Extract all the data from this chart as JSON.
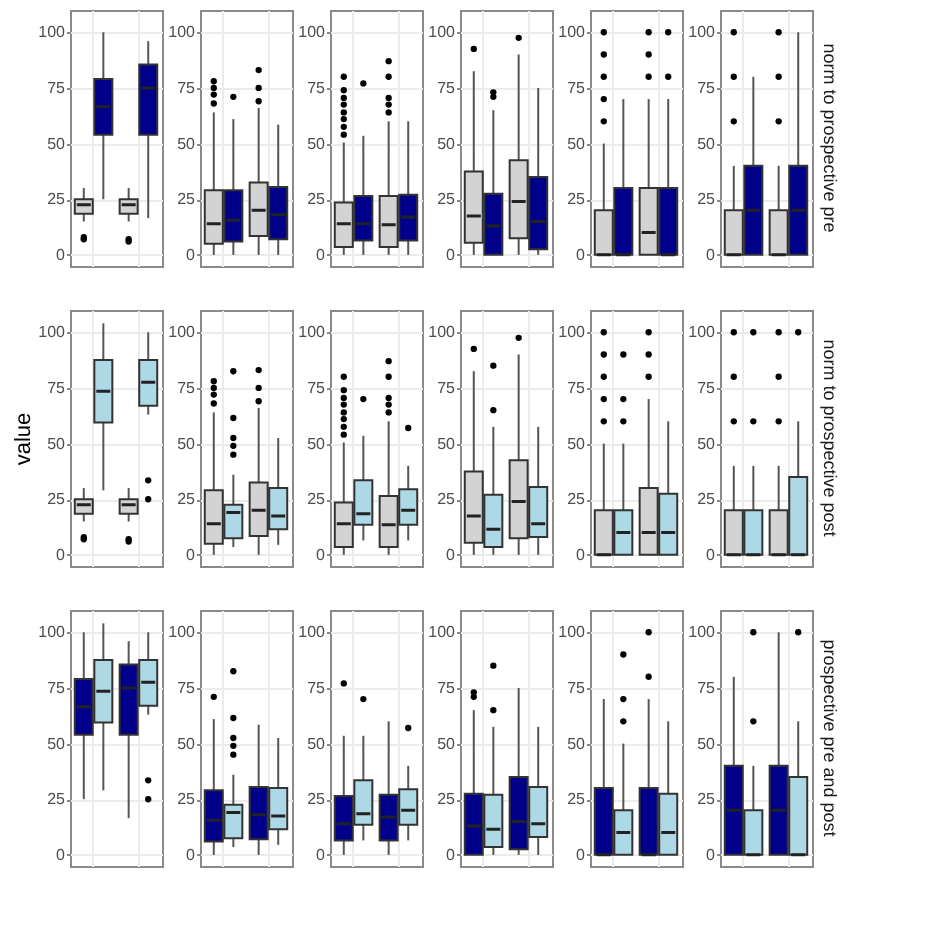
{
  "chart_data": [
    {
      "type": "box",
      "categories": [
        null,
        null
      ],
      "ylim": [
        -5,
        110
      ],
      "yticks": [
        0,
        25,
        50,
        75,
        100
      ],
      "grid": true,
      "series": [
        {
          "color": "#d3d3d3",
          "boxes": [
            {
              "low": 15,
              "q1": 18.5,
              "median": 22.5,
              "q3": 25,
              "high": 30,
              "outliers": [
                8,
                7
              ]
            },
            {
              "low": 15,
              "q1": 18.5,
              "median": 22.5,
              "q3": 25,
              "high": 30,
              "outliers": [
                7,
                6
              ]
            }
          ]
        },
        {
          "color": "#00008b",
          "boxes": [
            {
              "low": 25,
              "q1": 54,
              "median": 66.5,
              "q3": 79,
              "high": 100
            },
            {
              "low": 16.5,
              "q1": 54,
              "median": 75,
              "q3": 85.5,
              "high": 96
            }
          ]
        }
      ]
    },
    {
      "type": "box",
      "categories": [
        null,
        null
      ],
      "ylim": [
        -5,
        110
      ],
      "yticks": [
        0,
        25,
        50,
        75,
        100
      ],
      "grid": true,
      "series": [
        {
          "color": "#d3d3d3",
          "boxes": [
            {
              "low": 0,
              "q1": 5,
              "median": 14,
              "q3": 29,
              "high": 64,
              "outliers": [
                68,
                72,
                75,
                78
              ]
            },
            {
              "low": 0,
              "q1": 8.5,
              "median": 20,
              "q3": 32.5,
              "high": 66,
              "outliers": [
                69,
                75,
                83
              ]
            }
          ]
        },
        {
          "color": "#00008b",
          "boxes": [
            {
              "low": 0,
              "q1": 6,
              "median": 15.5,
              "q3": 29,
              "high": 61,
              "outliers": [
                71
              ]
            },
            {
              "low": 0,
              "q1": 7,
              "median": 18,
              "q3": 30.5,
              "high": 58.5
            }
          ]
        }
      ]
    },
    {
      "type": "box",
      "categories": [
        null,
        null
      ],
      "ylim": [
        -5,
        110
      ],
      "yticks": [
        0,
        25,
        50,
        75,
        100
      ],
      "grid": true,
      "series": [
        {
          "color": "#d3d3d3",
          "boxes": [
            {
              "low": 0,
              "q1": 3.5,
              "median": 14,
              "q3": 23.5,
              "high": 50.5,
              "outliers": [
                54,
                57.5,
                61,
                64,
                67.5,
                70.5,
                74,
                80
              ]
            },
            {
              "low": 0,
              "q1": 3.5,
              "median": 13.5,
              "q3": 26.5,
              "high": 60,
              "outliers": [
                64,
                67.5,
                70.5,
                80,
                87
              ]
            }
          ]
        },
        {
          "color": "#00008b",
          "boxes": [
            {
              "low": 0,
              "q1": 6.5,
              "median": 14,
              "q3": 26.5,
              "high": 53.5,
              "outliers": [
                77
              ]
            },
            {
              "low": 0,
              "q1": 6.5,
              "median": 17,
              "q3": 27,
              "high": 60
            }
          ]
        }
      ]
    },
    {
      "type": "box",
      "categories": [
        null,
        null
      ],
      "ylim": [
        -5,
        110
      ],
      "yticks": [
        0,
        25,
        50,
        75,
        100
      ],
      "grid": true,
      "series": [
        {
          "color": "#d3d3d3",
          "boxes": [
            {
              "low": 0,
              "q1": 5.5,
              "median": 17.5,
              "q3": 37.5,
              "high": 82.5,
              "outliers": [
                92.5
              ]
            },
            {
              "low": 0,
              "q1": 7.5,
              "median": 24,
              "q3": 42.5,
              "high": 90,
              "outliers": [
                97.5
              ]
            }
          ]
        },
        {
          "color": "#00008b",
          "boxes": [
            {
              "low": 0,
              "q1": 0,
              "median": 13,
              "q3": 27.5,
              "high": 65,
              "outliers": [
                71,
                73
              ]
            },
            {
              "low": 0,
              "q1": 2.5,
              "median": 15,
              "q3": 35,
              "high": 75
            }
          ]
        }
      ]
    },
    {
      "type": "box",
      "categories": [
        null,
        null
      ],
      "ylim": [
        -5,
        110
      ],
      "yticks": [
        0,
        25,
        50,
        75,
        100
      ],
      "grid": true,
      "series": [
        {
          "color": "#d3d3d3",
          "boxes": [
            {
              "low": 0,
              "q1": 0,
              "median": 0,
              "q3": 20,
              "high": 50,
              "outliers": [
                60,
                70,
                80,
                90,
                100
              ]
            },
            {
              "low": 0,
              "q1": 0,
              "median": 10,
              "q3": 30,
              "high": 70,
              "outliers": [
                80,
                90,
                100
              ]
            }
          ]
        },
        {
          "color": "#00008b",
          "boxes": [
            {
              "low": 0,
              "q1": 0,
              "median": 0,
              "q3": 30,
              "high": 70
            },
            {
              "low": 0,
              "q1": 0,
              "median": 0,
              "q3": 30,
              "high": 70,
              "outliers": [
                80,
                100
              ]
            }
          ]
        }
      ]
    },
    {
      "type": "box",
      "categories": [
        null,
        null
      ],
      "ylim": [
        -5,
        110
      ],
      "yticks": [
        0,
        25,
        50,
        75,
        100
      ],
      "grid": true,
      "y2label": "norm to prospective pre",
      "series": [
        {
          "color": "#d3d3d3",
          "boxes": [
            {
              "low": 0,
              "q1": 0,
              "median": 0,
              "q3": 20,
              "high": 40,
              "outliers": [
                60,
                80,
                100
              ]
            },
            {
              "low": 0,
              "q1": 0,
              "median": 0,
              "q3": 20,
              "high": 40,
              "outliers": [
                60,
                80,
                100
              ]
            }
          ]
        },
        {
          "color": "#00008b",
          "boxes": [
            {
              "low": 0,
              "q1": 0,
              "median": 20,
              "q3": 40,
              "high": 80
            },
            {
              "low": 0,
              "q1": 0,
              "median": 20,
              "q3": 40,
              "high": 100
            }
          ]
        }
      ]
    },
    {
      "type": "box",
      "categories": [
        null,
        null
      ],
      "ylim": [
        -5,
        110
      ],
      "yticks": [
        0,
        25,
        50,
        75,
        100
      ],
      "grid": true,
      "ylabel": "value",
      "series": [
        {
          "color": "#d3d3d3",
          "boxes": [
            {
              "low": 15,
              "q1": 18.5,
              "median": 22.5,
              "q3": 25,
              "high": 30,
              "outliers": [
                8,
                7
              ]
            },
            {
              "low": 15,
              "q1": 18.5,
              "median": 22.5,
              "q3": 25,
              "high": 30,
              "outliers": [
                7,
                6
              ]
            }
          ]
        },
        {
          "color": "#add8e6",
          "boxes": [
            {
              "low": 29,
              "q1": 59.5,
              "median": 73.5,
              "q3": 87.5,
              "high": 104
            },
            {
              "low": 63,
              "q1": 67,
              "median": 77.5,
              "q3": 87.5,
              "high": 100,
              "outliers": [
                33.5,
                25
              ]
            }
          ]
        }
      ]
    },
    {
      "type": "box",
      "categories": [
        null,
        null
      ],
      "ylim": [
        -5,
        110
      ],
      "yticks": [
        0,
        25,
        50,
        75,
        100
      ],
      "grid": true,
      "series": [
        {
          "color": "#d3d3d3",
          "boxes": [
            {
              "low": 0,
              "q1": 5,
              "median": 14,
              "q3": 29,
              "high": 64,
              "outliers": [
                68,
                72,
                75,
                78
              ]
            },
            {
              "low": 0,
              "q1": 8.5,
              "median": 20,
              "q3": 32.5,
              "high": 66,
              "outliers": [
                69,
                75,
                83
              ]
            }
          ]
        },
        {
          "color": "#add8e6",
          "boxes": [
            {
              "low": 3.5,
              "q1": 7.5,
              "median": 19,
              "q3": 22.5,
              "high": 36,
              "outliers": [
                45,
                49,
                52.5,
                61.5,
                82.5
              ]
            },
            {
              "low": 4.5,
              "q1": 11.5,
              "median": 17.5,
              "q3": 30,
              "high": 52.5
            }
          ]
        }
      ]
    },
    {
      "type": "box",
      "categories": [
        null,
        null
      ],
      "ylim": [
        -5,
        110
      ],
      "yticks": [
        0,
        25,
        50,
        75,
        100
      ],
      "grid": true,
      "series": [
        {
          "color": "#d3d3d3",
          "boxes": [
            {
              "low": 0,
              "q1": 3.5,
              "median": 14,
              "q3": 23.5,
              "high": 50.5,
              "outliers": [
                54,
                57.5,
                61,
                64,
                67.5,
                70.5,
                74,
                80
              ]
            },
            {
              "low": 0,
              "q1": 3.5,
              "median": 13.5,
              "q3": 26.5,
              "high": 60,
              "outliers": [
                64,
                67.5,
                70.5,
                80,
                87
              ]
            }
          ]
        },
        {
          "color": "#add8e6",
          "boxes": [
            {
              "low": 6.5,
              "q1": 13.5,
              "median": 18.5,
              "q3": 33.5,
              "high": 53.5,
              "outliers": [
                70
              ]
            },
            {
              "low": 6.5,
              "q1": 13.5,
              "median": 20,
              "q3": 29.5,
              "high": 40,
              "outliers": [
                57
              ]
            }
          ]
        }
      ]
    },
    {
      "type": "box",
      "categories": [
        null,
        null
      ],
      "ylim": [
        -5,
        110
      ],
      "yticks": [
        0,
        25,
        50,
        75,
        100
      ],
      "grid": true,
      "series": [
        {
          "color": "#d3d3d3",
          "boxes": [
            {
              "low": 0,
              "q1": 5.5,
              "median": 17.5,
              "q3": 37.5,
              "high": 82.5,
              "outliers": [
                92.5
              ]
            },
            {
              "low": 0,
              "q1": 7.5,
              "median": 24,
              "q3": 42.5,
              "high": 90,
              "outliers": [
                97.5
              ]
            }
          ]
        },
        {
          "color": "#add8e6",
          "boxes": [
            {
              "low": 0,
              "q1": 3.5,
              "median": 11.5,
              "q3": 27,
              "high": 57.5,
              "outliers": [
                65,
                85
              ]
            },
            {
              "low": 0,
              "q1": 8,
              "median": 14,
              "q3": 30.5,
              "high": 57.5
            }
          ]
        }
      ]
    },
    {
      "type": "box",
      "categories": [
        null,
        null
      ],
      "ylim": [
        -5,
        110
      ],
      "yticks": [
        0,
        25,
        50,
        75,
        100
      ],
      "grid": true,
      "series": [
        {
          "color": "#d3d3d3",
          "boxes": [
            {
              "low": 0,
              "q1": 0,
              "median": 0,
              "q3": 20,
              "high": 50,
              "outliers": [
                60,
                70,
                80,
                90,
                100
              ]
            },
            {
              "low": 0,
              "q1": 0,
              "median": 10,
              "q3": 30,
              "high": 70,
              "outliers": [
                80,
                90,
                100
              ]
            }
          ]
        },
        {
          "color": "#add8e6",
          "boxes": [
            {
              "low": 0,
              "q1": 0,
              "median": 10,
              "q3": 20,
              "high": 50,
              "outliers": [
                60,
                70,
                90
              ]
            },
            {
              "low": 0,
              "q1": 0,
              "median": 10,
              "q3": 27.5,
              "high": 60
            }
          ]
        }
      ]
    },
    {
      "type": "box",
      "categories": [
        null,
        null
      ],
      "ylim": [
        -5,
        110
      ],
      "yticks": [
        0,
        25,
        50,
        75,
        100
      ],
      "grid": true,
      "y2label": "norm to prospective post",
      "series": [
        {
          "color": "#d3d3d3",
          "boxes": [
            {
              "low": 0,
              "q1": 0,
              "median": 0,
              "q3": 20,
              "high": 40,
              "outliers": [
                60,
                80,
                100
              ]
            },
            {
              "low": 0,
              "q1": 0,
              "median": 0,
              "q3": 20,
              "high": 40,
              "outliers": [
                60,
                80,
                100
              ]
            }
          ]
        },
        {
          "color": "#add8e6",
          "boxes": [
            {
              "low": 0,
              "q1": 0,
              "median": 0,
              "q3": 20,
              "high": 40,
              "outliers": [
                60,
                100
              ]
            },
            {
              "low": 0,
              "q1": 0,
              "median": 0,
              "q3": 35,
              "high": 60,
              "outliers": [
                100
              ]
            }
          ]
        }
      ]
    },
    {
      "type": "box",
      "categories": [
        null,
        null
      ],
      "ylim": [
        -5,
        110
      ],
      "yticks": [
        0,
        25,
        50,
        75,
        100
      ],
      "grid": true,
      "series": [
        {
          "color": "#00008b",
          "boxes": [
            {
              "low": 25,
              "q1": 54,
              "median": 66.5,
              "q3": 79,
              "high": 100
            },
            {
              "low": 16.5,
              "q1": 54,
              "median": 75,
              "q3": 85.5,
              "high": 96
            }
          ]
        },
        {
          "color": "#add8e6",
          "boxes": [
            {
              "low": 29,
              "q1": 59.5,
              "median": 73.5,
              "q3": 87.5,
              "high": 104
            },
            {
              "low": 63,
              "q1": 67,
              "median": 77.5,
              "q3": 87.5,
              "high": 100,
              "outliers": [
                33.5,
                25
              ]
            }
          ]
        }
      ]
    },
    {
      "type": "box",
      "categories": [
        null,
        null
      ],
      "ylim": [
        -5,
        110
      ],
      "yticks": [
        0,
        25,
        50,
        75,
        100
      ],
      "grid": true,
      "series": [
        {
          "color": "#00008b",
          "boxes": [
            {
              "low": 0,
              "q1": 6,
              "median": 15.5,
              "q3": 29,
              "high": 61,
              "outliers": [
                71
              ]
            },
            {
              "low": 0,
              "q1": 7,
              "median": 18,
              "q3": 30.5,
              "high": 58.5
            }
          ]
        },
        {
          "color": "#add8e6",
          "boxes": [
            {
              "low": 3.5,
              "q1": 7.5,
              "median": 19,
              "q3": 22.5,
              "high": 36,
              "outliers": [
                45,
                49,
                52.5,
                61.5,
                82.5
              ]
            },
            {
              "low": 4.5,
              "q1": 11.5,
              "median": 17.5,
              "q3": 30,
              "high": 52.5
            }
          ]
        }
      ]
    },
    {
      "type": "box",
      "categories": [
        null,
        null
      ],
      "ylim": [
        -5,
        110
      ],
      "yticks": [
        0,
        25,
        50,
        75,
        100
      ],
      "grid": true,
      "series": [
        {
          "color": "#00008b",
          "boxes": [
            {
              "low": 0,
              "q1": 6.5,
              "median": 14,
              "q3": 26.5,
              "high": 53.5,
              "outliers": [
                77
              ]
            },
            {
              "low": 0,
              "q1": 6.5,
              "median": 17,
              "q3": 27,
              "high": 60
            }
          ]
        },
        {
          "color": "#add8e6",
          "boxes": [
            {
              "low": 6.5,
              "q1": 13.5,
              "median": 18.5,
              "q3": 33.5,
              "high": 53.5,
              "outliers": [
                70
              ]
            },
            {
              "low": 6.5,
              "q1": 13.5,
              "median": 20,
              "q3": 29.5,
              "high": 40,
              "outliers": [
                57
              ]
            }
          ]
        }
      ]
    },
    {
      "type": "box",
      "categories": [
        null,
        null
      ],
      "ylim": [
        -5,
        110
      ],
      "yticks": [
        0,
        25,
        50,
        75,
        100
      ],
      "grid": true,
      "series": [
        {
          "color": "#00008b",
          "boxes": [
            {
              "low": 0,
              "q1": 0,
              "median": 13,
              "q3": 27.5,
              "high": 65,
              "outliers": [
                71,
                73
              ]
            },
            {
              "low": 0,
              "q1": 2.5,
              "median": 15,
              "q3": 35,
              "high": 75
            }
          ]
        },
        {
          "color": "#add8e6",
          "boxes": [
            {
              "low": 0,
              "q1": 3.5,
              "median": 11.5,
              "q3": 27,
              "high": 57.5,
              "outliers": [
                65,
                85
              ]
            },
            {
              "low": 0,
              "q1": 8,
              "median": 14,
              "q3": 30.5,
              "high": 57.5
            }
          ]
        }
      ]
    },
    {
      "type": "box",
      "categories": [
        null,
        null
      ],
      "ylim": [
        -5,
        110
      ],
      "yticks": [
        0,
        25,
        50,
        75,
        100
      ],
      "grid": true,
      "series": [
        {
          "color": "#00008b",
          "boxes": [
            {
              "low": 0,
              "q1": 0,
              "median": 0,
              "q3": 30,
              "high": 70
            },
            {
              "low": 0,
              "q1": 0,
              "median": 0,
              "q3": 30,
              "high": 70,
              "outliers": [
                80,
                100
              ]
            }
          ]
        },
        {
          "color": "#add8e6",
          "boxes": [
            {
              "low": 0,
              "q1": 0,
              "median": 10,
              "q3": 20,
              "high": 50,
              "outliers": [
                60,
                70,
                90
              ]
            },
            {
              "low": 0,
              "q1": 0,
              "median": 10,
              "q3": 27.5,
              "high": 60
            }
          ]
        }
      ]
    },
    {
      "type": "box",
      "categories": [
        null,
        null
      ],
      "ylim": [
        -5,
        110
      ],
      "yticks": [
        0,
        25,
        50,
        75,
        100
      ],
      "grid": true,
      "y2label": "prospective pre and post",
      "series": [
        {
          "color": "#00008b",
          "boxes": [
            {
              "low": 0,
              "q1": 0,
              "median": 20,
              "q3": 40,
              "high": 80
            },
            {
              "low": 0,
              "q1": 0,
              "median": 20,
              "q3": 40,
              "high": 100
            }
          ]
        },
        {
          "color": "#add8e6",
          "boxes": [
            {
              "low": 0,
              "q1": 0,
              "median": 0,
              "q3": 20,
              "high": 40,
              "outliers": [
                60,
                100
              ]
            },
            {
              "low": 0,
              "q1": 0,
              "median": 0,
              "q3": 35,
              "high": 60,
              "outliers": [
                100
              ]
            }
          ]
        }
      ]
    }
  ]
}
